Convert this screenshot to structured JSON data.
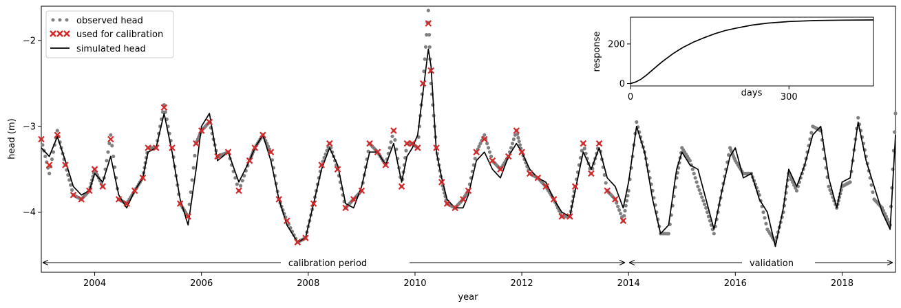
{
  "chart_data": [
    {
      "type": "line",
      "xlabel": "year",
      "ylabel": "head (m)",
      "xlim": [
        2003.0,
        2019.0
      ],
      "ylim": [
        -4.7,
        -1.6
      ],
      "xticks": [
        2004,
        2006,
        2008,
        2010,
        2012,
        2014,
        2016,
        2018
      ],
      "xtick_labels": [
        "2004",
        "2006",
        "2008",
        "2010",
        "2012",
        "2014",
        "2016",
        "2018"
      ],
      "yticks": [
        -4,
        -3,
        -2
      ],
      "ytick_labels": [
        "−4",
        "−3",
        "−2"
      ],
      "legend_position": "top-left",
      "legend": {
        "observed": "observed head",
        "calibration": "used for calibration",
        "simulated": "simulated head"
      },
      "periods": [
        {
          "label": "calibration period",
          "start": 2003.0,
          "end": 2014.0
        },
        {
          "label": "validation",
          "start": 2014.0,
          "end": 2019.0
        }
      ],
      "colors": {
        "observed": "#808080",
        "calibration": "#d62728",
        "simulated": "#000000"
      },
      "series": [
        {
          "name": "simulated head",
          "x": [
            2003.0,
            2003.15,
            2003.3,
            2003.45,
            2003.6,
            2003.75,
            2003.9,
            2004.0,
            2004.15,
            2004.3,
            2004.45,
            2004.6,
            2004.75,
            2004.9,
            2005.0,
            2005.15,
            2005.3,
            2005.45,
            2005.6,
            2005.75,
            2005.9,
            2006.0,
            2006.15,
            2006.3,
            2006.5,
            2006.7,
            2006.9,
            2007.0,
            2007.15,
            2007.3,
            2007.45,
            2007.6,
            2007.8,
            2007.95,
            2008.1,
            2008.25,
            2008.4,
            2008.55,
            2008.7,
            2008.85,
            2009.0,
            2009.15,
            2009.3,
            2009.45,
            2009.6,
            2009.75,
            2009.85,
            2009.95,
            2010.05,
            2010.15,
            2010.25,
            2010.3,
            2010.4,
            2010.5,
            2010.6,
            2010.75,
            2010.9,
            2011.0,
            2011.15,
            2011.3,
            2011.45,
            2011.6,
            2011.75,
            2011.9,
            2012.0,
            2012.15,
            2012.3,
            2012.45,
            2012.6,
            2012.75,
            2012.9,
            2013.0,
            2013.15,
            2013.3,
            2013.45,
            2013.6,
            2013.75,
            2013.9,
            2014.0,
            2014.15,
            2014.3,
            2014.45,
            2014.6,
            2014.75,
            2014.9,
            2015.0,
            2015.15,
            2015.3,
            2015.45,
            2015.6,
            2015.75,
            2015.9,
            2016.0,
            2016.15,
            2016.3,
            2016.45,
            2016.6,
            2016.75,
            2016.9,
            2017.0,
            2017.15,
            2017.3,
            2017.45,
            2017.6,
            2017.75,
            2017.9,
            2018.0,
            2018.15,
            2018.3,
            2018.45,
            2018.6,
            2018.75,
            2018.9,
            2019.0
          ],
          "values": [
            -3.25,
            -3.35,
            -3.12,
            -3.4,
            -3.7,
            -3.8,
            -3.75,
            -3.55,
            -3.65,
            -3.35,
            -3.8,
            -3.95,
            -3.75,
            -3.6,
            -3.3,
            -3.25,
            -2.85,
            -3.3,
            -3.85,
            -4.15,
            -3.5,
            -3.0,
            -2.85,
            -3.4,
            -3.3,
            -3.65,
            -3.4,
            -3.25,
            -3.1,
            -3.4,
            -3.85,
            -4.15,
            -4.35,
            -4.3,
            -3.9,
            -3.5,
            -3.25,
            -3.45,
            -3.9,
            -3.95,
            -3.7,
            -3.3,
            -3.3,
            -3.45,
            -3.2,
            -3.65,
            -3.35,
            -3.25,
            -3.1,
            -2.6,
            -2.1,
            -2.3,
            -3.3,
            -3.6,
            -3.85,
            -3.95,
            -3.95,
            -3.8,
            -3.4,
            -3.3,
            -3.5,
            -3.6,
            -3.35,
            -3.2,
            -3.3,
            -3.5,
            -3.6,
            -3.65,
            -3.85,
            -4.0,
            -4.05,
            -3.75,
            -3.3,
            -3.5,
            -3.25,
            -3.6,
            -3.7,
            -3.95,
            -3.65,
            -3.0,
            -3.3,
            -3.85,
            -4.25,
            -4.15,
            -3.5,
            -3.3,
            -3.45,
            -3.5,
            -3.85,
            -4.2,
            -3.75,
            -3.35,
            -3.25,
            -3.6,
            -3.55,
            -3.85,
            -4.0,
            -4.4,
            -3.95,
            -3.5,
            -3.7,
            -3.45,
            -3.1,
            -3.0,
            -3.6,
            -3.95,
            -3.65,
            -3.6,
            -2.95,
            -3.4,
            -3.7,
            -4.0,
            -4.2,
            -3.1
          ]
        },
        {
          "name": "observed head",
          "x": [
            2003.0,
            2003.15,
            2003.3,
            2003.45,
            2003.6,
            2003.75,
            2003.9,
            2004.0,
            2004.15,
            2004.3,
            2004.45,
            2004.6,
            2004.75,
            2004.9,
            2005.0,
            2005.15,
            2005.3,
            2005.45,
            2005.6,
            2005.75,
            2005.9,
            2006.0,
            2006.15,
            2006.3,
            2006.5,
            2006.7,
            2006.9,
            2007.0,
            2007.15,
            2007.3,
            2007.45,
            2007.6,
            2007.8,
            2007.95,
            2008.1,
            2008.25,
            2008.4,
            2008.55,
            2008.7,
            2008.85,
            2009.0,
            2009.15,
            2009.3,
            2009.45,
            2009.6,
            2009.75,
            2009.85,
            2009.95,
            2010.05,
            2010.15,
            2010.25,
            2010.3,
            2010.4,
            2010.5,
            2010.6,
            2010.75,
            2010.9,
            2011.0,
            2011.15,
            2011.3,
            2011.45,
            2011.6,
            2011.75,
            2011.9,
            2012.0,
            2012.15,
            2012.3,
            2012.45,
            2012.6,
            2012.75,
            2012.9,
            2013.0,
            2013.15,
            2013.3,
            2013.45,
            2013.6,
            2013.75,
            2013.9,
            2014.0,
            2014.15,
            2014.3,
            2014.45,
            2014.6,
            2014.75,
            2014.9,
            2015.0,
            2015.15,
            2015.3,
            2015.45,
            2015.6,
            2015.75,
            2015.9,
            2016.0,
            2016.15,
            2016.3,
            2016.45,
            2016.6,
            2016.75,
            2016.9,
            2017.0,
            2017.15,
            2017.3,
            2017.45,
            2017.6,
            2017.75,
            2017.9,
            2018.0,
            2018.15,
            2018.3,
            2018.45,
            2018.6,
            2018.75,
            2018.9,
            2019.0
          ],
          "values": [
            -3.15,
            -3.55,
            -3.05,
            -3.45,
            -3.8,
            -3.85,
            -3.75,
            -3.5,
            -3.7,
            -3.1,
            -3.85,
            -3.9,
            -3.75,
            -3.6,
            -3.25,
            -3.25,
            -2.75,
            -3.25,
            -3.9,
            -4.05,
            -3.2,
            -3.05,
            -2.95,
            -3.35,
            -3.3,
            -3.75,
            -3.4,
            -3.25,
            -3.1,
            -3.3,
            -3.85,
            -4.1,
            -4.35,
            -4.3,
            -3.9,
            -3.45,
            -3.2,
            -3.5,
            -3.95,
            -3.85,
            -3.75,
            -3.2,
            -3.3,
            -3.45,
            -3.05,
            -3.7,
            -3.2,
            -3.2,
            -3.25,
            -2.5,
            -1.65,
            -2.5,
            -3.25,
            -3.65,
            -3.9,
            -3.95,
            -3.85,
            -3.75,
            -3.3,
            -3.1,
            -3.4,
            -3.5,
            -3.35,
            -3.05,
            -3.3,
            -3.55,
            -3.6,
            -3.7,
            -3.85,
            -4.05,
            -4.05,
            -3.7,
            -3.2,
            -3.55,
            -3.2,
            -3.75,
            -3.85,
            -4.1,
            -3.75,
            -2.95,
            -3.3,
            -3.75,
            -4.25,
            -4.25,
            -3.6,
            -3.25,
            -3.4,
            -3.7,
            -3.95,
            -4.25,
            -3.75,
            -3.25,
            -3.4,
            -3.55,
            -3.55,
            -3.8,
            -4.2,
            -4.35,
            -4.0,
            -3.55,
            -3.75,
            -3.45,
            -3.0,
            -3.05,
            -3.7,
            -3.95,
            -3.7,
            -3.65,
            -2.9,
            -3.35,
            -3.85,
            -3.95,
            -4.15,
            -2.85
          ]
        },
        {
          "name": "used for calibration",
          "x": [
            2003.0,
            2003.15,
            2003.3,
            2003.45,
            2003.6,
            2003.75,
            2003.9,
            2004.0,
            2004.15,
            2004.3,
            2004.45,
            2004.6,
            2004.75,
            2004.9,
            2005.0,
            2005.15,
            2005.3,
            2005.45,
            2005.6,
            2005.75,
            2005.9,
            2006.0,
            2006.15,
            2006.3,
            2006.5,
            2006.7,
            2006.9,
            2007.0,
            2007.15,
            2007.3,
            2007.45,
            2007.6,
            2007.8,
            2007.95,
            2008.1,
            2008.25,
            2008.4,
            2008.55,
            2008.7,
            2008.85,
            2009.0,
            2009.15,
            2009.3,
            2009.45,
            2009.6,
            2009.75,
            2009.85,
            2009.95,
            2010.05,
            2010.15,
            2010.25,
            2010.3,
            2010.4,
            2010.5,
            2010.6,
            2010.75,
            2010.9,
            2011.0,
            2011.15,
            2011.3,
            2011.45,
            2011.6,
            2011.75,
            2011.9,
            2012.0,
            2012.15,
            2012.3,
            2012.45,
            2012.6,
            2012.75,
            2012.9,
            2013.0,
            2013.15,
            2013.3,
            2013.45,
            2013.6,
            2013.75,
            2013.9
          ],
          "values": [
            -3.15,
            -3.45,
            -3.1,
            -3.45,
            -3.8,
            -3.85,
            -3.75,
            -3.5,
            -3.7,
            -3.15,
            -3.85,
            -3.9,
            -3.75,
            -3.6,
            -3.25,
            -3.25,
            -2.78,
            -3.25,
            -3.9,
            -4.05,
            -3.2,
            -3.05,
            -2.95,
            -3.35,
            -3.3,
            -3.75,
            -3.4,
            -3.25,
            -3.1,
            -3.3,
            -3.85,
            -4.1,
            -4.35,
            -4.3,
            -3.9,
            -3.45,
            -3.2,
            -3.5,
            -3.95,
            -3.85,
            -3.75,
            -3.2,
            -3.3,
            -3.45,
            -3.05,
            -3.7,
            -3.2,
            -3.2,
            -3.25,
            -2.5,
            -1.8,
            -2.35,
            -3.25,
            -3.65,
            -3.9,
            -3.95,
            -3.85,
            -3.75,
            -3.3,
            -3.15,
            -3.4,
            -3.5,
            -3.35,
            -3.05,
            -3.3,
            -3.55,
            -3.6,
            -3.7,
            -3.85,
            -4.05,
            -4.05,
            -3.7,
            -3.2,
            -3.55,
            -3.2,
            -3.75,
            -3.85,
            -4.1
          ]
        }
      ]
    },
    {
      "type": "line",
      "xlabel": "days",
      "ylabel": "response",
      "xlim": [
        0,
        460
      ],
      "ylim": [
        -12,
        335
      ],
      "xticks": [
        0,
        300
      ],
      "xtick_labels": [
        "0",
        "300"
      ],
      "yticks": [
        0,
        200
      ],
      "ytick_labels": [
        "0",
        "200"
      ],
      "series": [
        {
          "name": "",
          "x": [
            0,
            10,
            20,
            30,
            40,
            50,
            60,
            70,
            80,
            90,
            100,
            120,
            140,
            160,
            180,
            200,
            230,
            260,
            300,
            350,
            400,
            460
          ],
          "values": [
            0,
            8,
            22,
            42,
            65,
            88,
            110,
            130,
            150,
            167,
            183,
            210,
            232,
            252,
            268,
            280,
            295,
            305,
            313,
            318,
            320,
            321
          ]
        }
      ]
    }
  ]
}
